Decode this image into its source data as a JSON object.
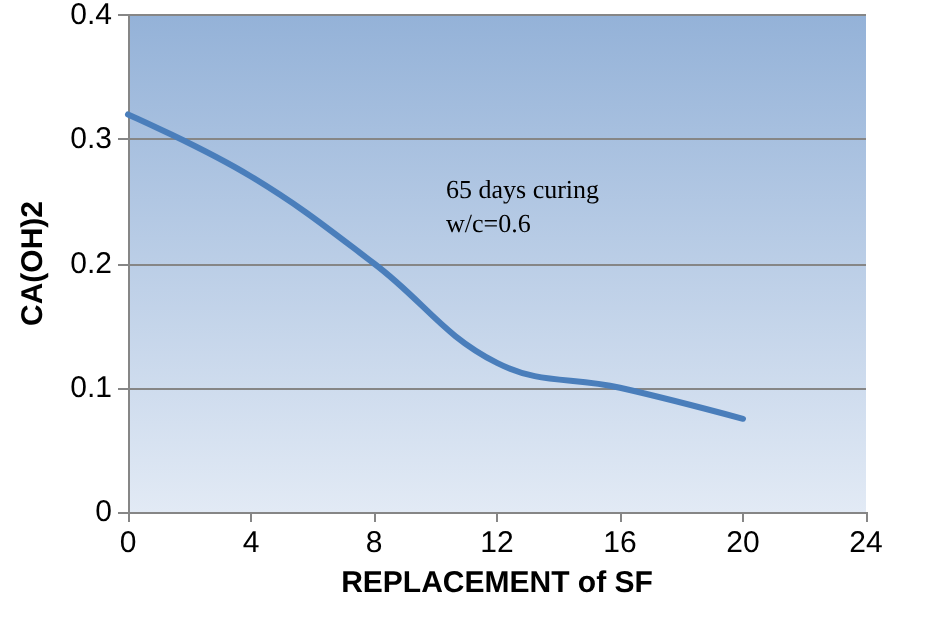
{
  "chart_data": {
    "type": "line",
    "xlabel": "REPLACEMENT of SF",
    "ylabel": "CA(OH)2",
    "x": [
      0,
      4,
      8,
      12,
      16,
      20
    ],
    "series": [
      {
        "color": "#4a7ebb",
        "values": [
          0.32,
          0.27,
          0.2,
          0.12,
          0.1,
          0.075
        ]
      }
    ],
    "xlim": [
      0,
      24
    ],
    "xticks": [
      0,
      4,
      8,
      12,
      16,
      20,
      24
    ],
    "ylim": [
      0,
      0.4
    ],
    "yticks": [
      0,
      0.1,
      0.2,
      0.3,
      0.4
    ],
    "grid": "y",
    "marker": "none",
    "line_style": "solid",
    "annotations": [
      "65 days curing",
      "w/c=0.6"
    ]
  }
}
